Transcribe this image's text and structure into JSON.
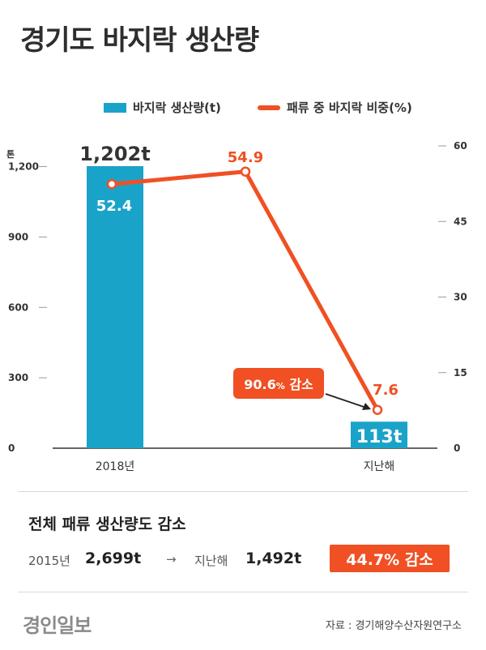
{
  "title": "경기도 바지락 생산량",
  "legend": {
    "bar_label": "바지락 생산량(t)",
    "line_label": "패류 중 바지락 비중(%)"
  },
  "chart_data": {
    "type": "bar+line",
    "categories": [
      "2018년",
      "지난해"
    ],
    "bar_series": {
      "name": "바지락 생산량(t)",
      "values": [
        1202,
        113
      ],
      "value_labels": [
        "1,202t",
        "113t"
      ],
      "color": "#1aa3c9"
    },
    "line_series": {
      "name": "패류 중 바지락 비중(%)",
      "points": [
        {
          "x": "2018년",
          "y": 52.4,
          "label": "52.4"
        },
        {
          "x": "2018년~지난해",
          "y": 54.9,
          "label": "54.9"
        },
        {
          "x": "지난해",
          "y": 7.6,
          "label": "7.6"
        }
      ],
      "color": "#f05023"
    },
    "left_axis": {
      "unit_label": "톤",
      "ylim": [
        0,
        1300
      ],
      "ticks": [
        0,
        300,
        600,
        900,
        1200
      ],
      "tick_labels": [
        "0",
        "300",
        "600",
        "900",
        "1,200"
      ]
    },
    "right_axis": {
      "ylim": [
        0,
        60
      ],
      "ticks": [
        0,
        15,
        30,
        45,
        60
      ],
      "tick_labels": [
        "0",
        "15",
        "30",
        "45",
        "60"
      ]
    },
    "annotation": {
      "text": "90.6",
      "pct": "%",
      "word": " 감소",
      "color": "#f05023"
    },
    "grid": false
  },
  "summary": {
    "title": "전체 패류 생산량도 감소",
    "from_label": "2015년",
    "from_value": "2,699t",
    "arrow": "→",
    "to_label": "지난해",
    "to_value": "1,492t",
    "badge": "44.7% 감소",
    "badge_color": "#f05023"
  },
  "footer": {
    "brand": "경인일보",
    "source": "자료 : 경기해양수산자원연구소"
  }
}
